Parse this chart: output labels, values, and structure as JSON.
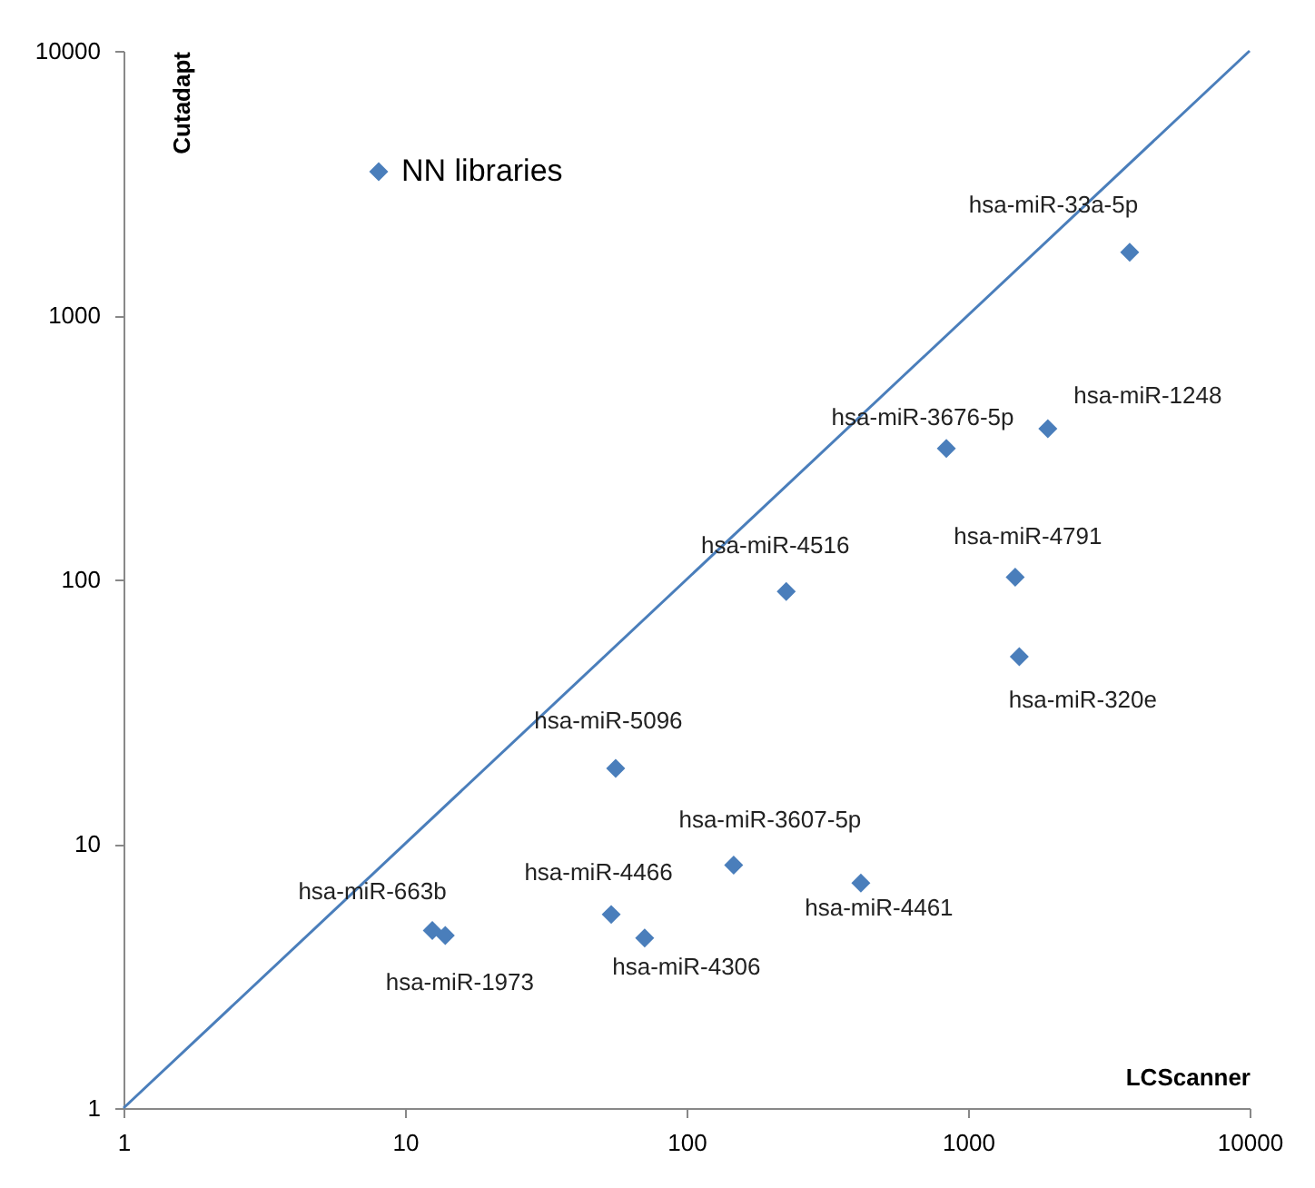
{
  "chart_data": {
    "type": "scatter",
    "xlabel": "LCScanner",
    "ylabel": "Cutadapt",
    "log": "xy",
    "xlim": [
      1,
      10000
    ],
    "ylim": [
      1,
      10000
    ],
    "xticks": [
      1,
      10,
      100,
      1000,
      10000
    ],
    "yticks": [
      1,
      10,
      100,
      1000,
      10000
    ],
    "grid": false,
    "legend": "top left",
    "marker": "diamond",
    "series": [
      {
        "name": "NN libraries",
        "color": "#4a7ebb",
        "x": [
          3750,
          1920,
          837,
          1470,
          1520,
          226,
          56,
          147,
          416,
          54,
          71,
          12.5,
          13.9
        ],
        "values": [
          1730,
          372,
          313,
          102,
          51,
          90,
          19.3,
          8.3,
          7.1,
          5.4,
          4.4,
          4.7,
          4.5
        ]
      },
      {
        "type": "line",
        "color": "#4a7ebb",
        "line_style": "solid",
        "marker": "none",
        "x": [
          1,
          10000
        ],
        "values": [
          1,
          10000
        ]
      }
    ],
    "annotations": [
      {
        "text": "hsa-miR-33a-5p",
        "x": 3750,
        "y": 1730
      },
      {
        "text": "hsa-miR-1248",
        "x": 1920,
        "y": 372
      },
      {
        "text": "hsa-miR-3676-5p",
        "x": 837,
        "y": 313
      },
      {
        "text": "hsa-miR-4791",
        "x": 1470,
        "y": 102
      },
      {
        "text": "hsa-miR-320e",
        "x": 1520,
        "y": 51
      },
      {
        "text": "hsa-miR-4516",
        "x": 226,
        "y": 90
      },
      {
        "text": "hsa-miR-5096",
        "x": 56,
        "y": 19.3
      },
      {
        "text": "hsa-miR-3607-5p",
        "x": 147,
        "y": 8.3
      },
      {
        "text": "hsa-miR-4461",
        "x": 416,
        "y": 7.1
      },
      {
        "text": "hsa-miR-4466",
        "x": 54,
        "y": 5.4
      },
      {
        "text": "hsa-miR-4306",
        "x": 71,
        "y": 4.4
      },
      {
        "text": "hsa-miR-663b",
        "x": 12.5,
        "y": 4.7
      },
      {
        "text": "hsa-miR-1973",
        "x": 13.9,
        "y": 4.5
      }
    ]
  }
}
